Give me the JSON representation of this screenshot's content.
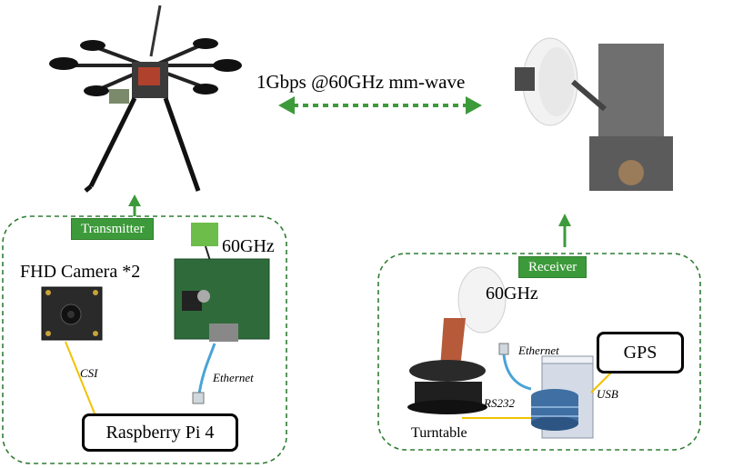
{
  "link_label": "1Gbps @60GHz mm-wave",
  "transmitter": {
    "tag": "Transmitter",
    "radio_label": "60GHz",
    "camera_label": "FHD Camera *2",
    "csi_label": "CSI",
    "ethernet_label": "Ethernet",
    "compute_label": "Raspberry Pi 4"
  },
  "receiver": {
    "tag": "Receiver",
    "radio_label": "60GHz",
    "ethernet_label": "Ethernet",
    "gps_label": "GPS",
    "usb_label": "USB",
    "rs232_label": "RS232",
    "turntable_label": "Turntable"
  },
  "colors": {
    "accent_green": "#3d9a3a",
    "group_border": "#2e7d32",
    "cable_yellow": "#f2c200"
  }
}
